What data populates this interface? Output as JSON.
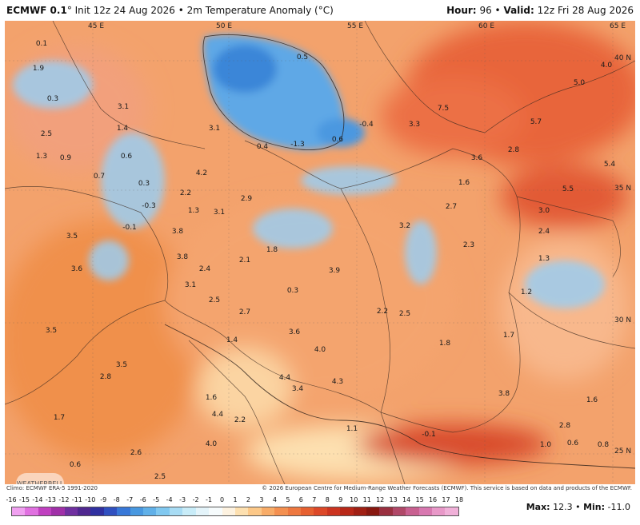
{
  "header": {
    "model": "ECMWF 0.1",
    "run": "° Init 12z 24 Aug 2026",
    "separator": "•",
    "parameter": "2m Temperature Anomaly (°C)",
    "hour_label": "Hour:",
    "hour_value": "96",
    "valid_label": "Valid:",
    "valid_value": "12z Fri 28 Aug 2026"
  },
  "grid_labels": [
    "45 E",
    "50 E",
    "55 E",
    "60 E",
    "65 E",
    "40 N",
    "35 N",
    "30 N",
    "25 N"
  ],
  "values": [
    "0.1",
    "1.9",
    "0.3",
    "2.5",
    "1.3",
    "0.9",
    "3.1",
    "1.4",
    "0.6",
    "0.7",
    "0.3",
    "-0.3",
    "-0.1",
    "3.5",
    "3.6",
    "3.5",
    "2.8",
    "3.5",
    "1.7",
    "2.6",
    "2.5",
    "3.1",
    "4.2",
    "2.2",
    "1.3",
    "3.1",
    "3.8",
    "3.8",
    "2.4",
    "3.1",
    "2.5",
    "2.7",
    "2.1",
    "1.8",
    "2.9",
    "0.3",
    "3.6",
    "4.0",
    "4.4",
    "4.3",
    "3.4",
    "1.6",
    "4.4",
    "2.2",
    "4.0",
    "1.1",
    "1.4",
    "0.5",
    "-0.4",
    "-1.3",
    "0.4",
    "0.6",
    "3.3",
    "7.5",
    "5.0",
    "4.0",
    "5.7",
    "2.8",
    "3.6",
    "1.6",
    "5.4",
    "5.5",
    "3.0",
    "2.7",
    "3.2",
    "3.9",
    "2.2",
    "2.5",
    "2.3",
    "2.4",
    "1.3",
    "1.2",
    "1.7",
    "1.8",
    "3.8",
    "1.6",
    "2.8",
    "-0.1",
    "1.0",
    "0.6",
    "0.8",
    "0.6"
  ],
  "credits": {
    "left": "Climo: ECMWF ERA-5 1991-2020",
    "right": "© 2026 European Centre for Medium-Range Weather Forecasts (ECMWF). This service is based on data and products of the ECMWF."
  },
  "logo_text": "WEATHERBELL",
  "legend": {
    "ticks": [
      "-16",
      "-15",
      "-14",
      "-13",
      "-12",
      "-11",
      "-10",
      "-9",
      "-8",
      "-7",
      "-6",
      "-5",
      "-4",
      "-3",
      "-2",
      "-1",
      "0",
      "1",
      "2",
      "3",
      "4",
      "5",
      "6",
      "7",
      "8",
      "9",
      "10",
      "11",
      "12",
      "13",
      "14",
      "15",
      "16",
      "17",
      "18"
    ],
    "colors": [
      "#f0a0f0",
      "#e070e0",
      "#c040c0",
      "#a030a8",
      "#7030a0",
      "#502890",
      "#3030a0",
      "#3050c0",
      "#3878d8",
      "#4898e0",
      "#60b0e8",
      "#80c8f0",
      "#a8dcf4",
      "#c8ecf8",
      "#e4f4fa",
      "#f6fbfc",
      "#fdf2e0",
      "#fde0b0",
      "#fcc888",
      "#f8ac68",
      "#f49050",
      "#ee7840",
      "#e66030",
      "#dc4828",
      "#cc3420",
      "#b82818",
      "#a02014",
      "#881810",
      "#9a3040",
      "#b04868",
      "#c86090",
      "#d878b0",
      "#e898c8",
      "#f0b0d8"
    ]
  },
  "max_label": "Max:",
  "max_value": "12.3",
  "min_label": "Min:",
  "min_value": "-11.0"
}
